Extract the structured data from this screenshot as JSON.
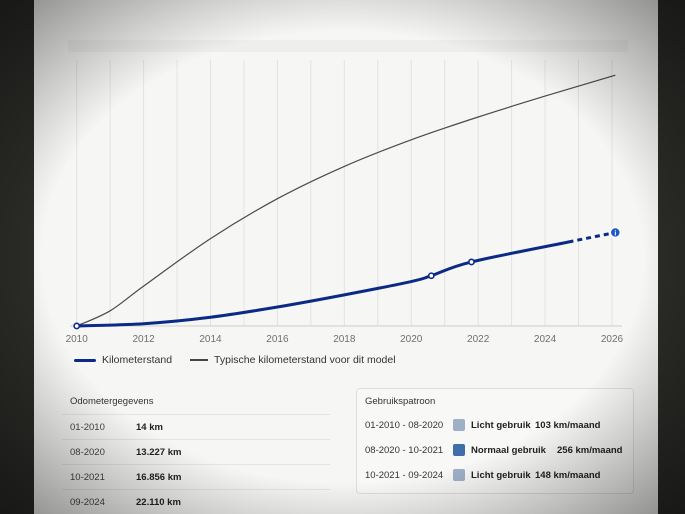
{
  "chart_data": {
    "type": "line",
    "x_ticks": [
      "2010",
      "2012",
      "2014",
      "2016",
      "2018",
      "2020",
      "2022",
      "2024",
      "2026"
    ],
    "xlim": [
      2009.8,
      2026.3
    ],
    "ylim": [
      0,
      70000
    ],
    "grid": true,
    "legend_placement": "bottom-left",
    "series": [
      {
        "name": "Kilometerstand",
        "color": "#0b2a86",
        "x": [
          2010.0,
          2012.0,
          2014.0,
          2016.0,
          2018.0,
          2020.0,
          2020.6,
          2021.8,
          2024.7
        ],
        "y": [
          14,
          600,
          2300,
          5000,
          8200,
          11700,
          13227,
          16856,
          22110
        ],
        "markers_at": [
          0,
          6,
          7
        ],
        "projection": {
          "x": [
            2024.7,
            2026.1
          ],
          "y": [
            22110,
            24600
          ]
        }
      },
      {
        "name": "Typische kilometerstand voor dit model",
        "color": "#4a4a4a",
        "x": [
          2010.0,
          2011.0,
          2012.0,
          2014.0,
          2016.0,
          2018.0,
          2020.0,
          2022.0,
          2024.0,
          2026.1
        ],
        "y": [
          0,
          4000,
          10500,
          23000,
          33500,
          42000,
          49000,
          55000,
          60500,
          66000
        ]
      }
    ]
  },
  "legend": {
    "kilometerstand": "Kilometerstand",
    "typisch": "Typische kilometerstand voor dit model"
  },
  "odometer": {
    "title": "Odometergegevens",
    "rows": [
      {
        "date": "01-2010",
        "km": "14 km"
      },
      {
        "date": "08-2020",
        "km": "13.227 km"
      },
      {
        "date": "10-2021",
        "km": "16.856 km"
      },
      {
        "date": "09-2024",
        "km": "22.110 km"
      }
    ]
  },
  "usage": {
    "title": "Gebruikspatroon",
    "rows": [
      {
        "period": "01-2010 - 08-2020",
        "label": "Licht gebruik",
        "rate": "103 km/maand",
        "color": "#9fb0c6"
      },
      {
        "period": "08-2020 - 10-2021",
        "label": "Normaal gebruik",
        "rate": "256 km/maand",
        "color": "#3f6fa8"
      },
      {
        "period": "10-2021 - 09-2024",
        "label": "Licht gebruik",
        "rate": "148 km/maand",
        "color": "#9fb0c6"
      }
    ]
  }
}
